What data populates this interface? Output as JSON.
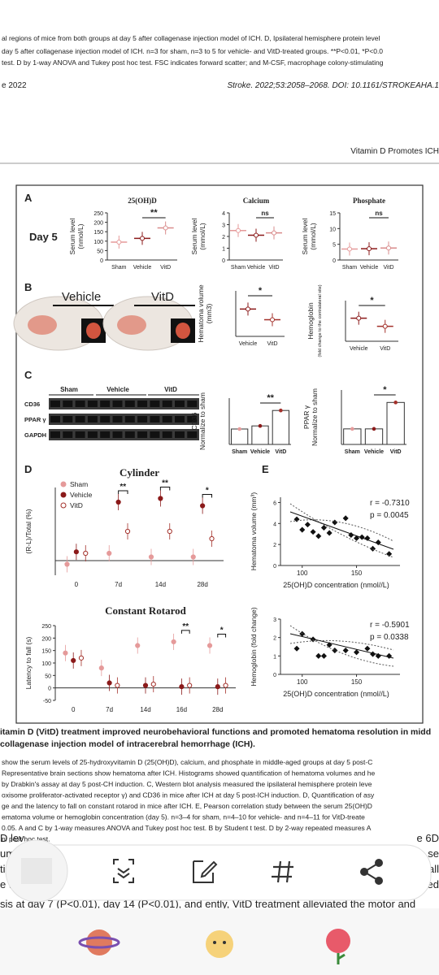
{
  "header": {
    "lines": [
      "al regions of mice from both groups at day 5 after collagenase injection model of ICH. D, Ipsilateral hemisphere protein level",
      "day 5 after collagenase injection model of ICH. n=3 for sham, n=3 to 5 for vehicle- and VitD-treated groups. **P<0.01, *P<0.0",
      "test. D by 1-way ANOVA and Tukey post hoc test. FSC indicates forward scatter; and M-CSF, macrophage colony-stimulating"
    ],
    "date": "e 2022",
    "citation": "Stroke. 2022;53:2058–2068. DOI: 10.1161/STROKEAHA.1",
    "running_title": "Vitamin D Promotes ICH"
  },
  "figure": {
    "panel_labels": [
      "A",
      "B",
      "C",
      "D",
      "E"
    ],
    "day": "Day 5",
    "brain_labels": [
      "Vehicle",
      "VitD"
    ],
    "blot": {
      "groups": [
        "Sham",
        "Vehicle",
        "VitD"
      ],
      "rows": [
        "CD36",
        "PPAR γ",
        "GAPDH"
      ]
    },
    "legend": [
      {
        "name": "Sham",
        "color": "#e59a9a"
      },
      {
        "name": "Vehicle",
        "color": "#8b1a1a"
      },
      {
        "name": "VitD",
        "color": "#a3302a"
      }
    ],
    "charts": [
      {
        "type": "dot",
        "title": "25(OH)D",
        "ylabel": [
          "Serum level",
          "(nmol/L)"
        ],
        "categories": [
          "Sham",
          "Vehicle",
          "VitD"
        ],
        "values": [
          95,
          115,
          170
        ],
        "colors": [
          "#e59a9a",
          "#8b1a1a",
          "#d98c8c"
        ],
        "ylim": [
          0,
          250
        ],
        "yticks": [
          0,
          50,
          100,
          150,
          200,
          250
        ],
        "sig": "**"
      },
      {
        "type": "dot",
        "title": "Calcium",
        "ylabel": [
          "Serum level",
          "(mmol/L)"
        ],
        "categories": [
          "Sham",
          "Vehicle",
          "VitD"
        ],
        "values": [
          2.5,
          2.1,
          2.3
        ],
        "colors": [
          "#e59a9a",
          "#8b1a1a",
          "#d98c8c"
        ],
        "ylim": [
          0,
          4
        ],
        "yticks": [
          0,
          1,
          2,
          3,
          4
        ],
        "sig": "ns"
      },
      {
        "type": "dot",
        "title": "Phosphate",
        "ylabel": [
          "Serum level",
          "(mmol/L)"
        ],
        "categories": [
          "Sham",
          "Vehicle",
          "VitD"
        ],
        "values": [
          3.5,
          3.6,
          3.8
        ],
        "colors": [
          "#e59a9a",
          "#8b1a1a",
          "#d98c8c"
        ],
        "ylim": [
          0,
          15
        ],
        "yticks": [
          0,
          5,
          10,
          15
        ],
        "sig": "ns"
      },
      {
        "type": "dot",
        "ylabel": [
          "Hematoma volume",
          "(mm3)"
        ],
        "categories": [
          "Vehicle",
          "VitD"
        ],
        "values": [
          3.6,
          2.2
        ],
        "colors": [
          "#8b1a1a",
          "#a3302a"
        ],
        "ylim": [
          0,
          6
        ],
        "sig": "*"
      },
      {
        "type": "dot",
        "ylabel": [
          "Hemoglobin",
          "(fold change to the contralateral site)"
        ],
        "categories": [
          "Vehicle",
          "VitD"
        ],
        "values": [
          1.7,
          1.1
        ],
        "colors": [
          "#8b1a1a",
          "#a3302a"
        ],
        "ylim": [
          0,
          3
        ],
        "sig": "*"
      },
      {
        "type": "bar",
        "ylabel": [
          "CD36",
          "Normalize to sham"
        ],
        "categories": [
          "Sham",
          "Vehicle",
          "VitD"
        ],
        "values": [
          1,
          1.2,
          2.2
        ],
        "colors": [
          "#e59a9a",
          "#8b1a1a",
          "#a3302a"
        ],
        "ylim": [
          0,
          3
        ],
        "sig": "**"
      },
      {
        "type": "bar",
        "ylabel": [
          "PPAR γ",
          "Normalize to sham"
        ],
        "categories": [
          "Sham",
          "Vehicle",
          "VitD"
        ],
        "values": [
          1,
          1,
          2.7
        ],
        "colors": [
          "#e59a9a",
          "#8b1a1a",
          "#a3302a"
        ],
        "ylim": [
          0,
          3.5
        ],
        "sig": "*"
      },
      {
        "type": "grouped-dot",
        "title": "Cylinder",
        "ylabel": [
          "(R-L)/Total (%)"
        ],
        "categories": [
          "0",
          "7d",
          "14d",
          "28d"
        ],
        "ylim": [
          -20,
          100
        ],
        "sig": [
          null,
          "**",
          "**",
          "*"
        ],
        "series": [
          {
            "name": "Sham",
            "color": "#e59a9a",
            "values": [
              -5,
              10,
              5,
              5
            ]
          },
          {
            "name": "Vehicle",
            "color": "#8b1a1a",
            "values": [
              12,
              80,
              85,
              75
            ]
          },
          {
            "name": "VitD",
            "color": "#a3302a",
            "values": [
              10,
              40,
              40,
              30
            ]
          }
        ]
      },
      {
        "type": "grouped-dot",
        "title": "Constant Rotarod",
        "ylabel": [
          "Latency to fall (s)"
        ],
        "categories": [
          "0",
          "7d",
          "14d",
          "16d",
          "28d"
        ],
        "ylim": [
          -50,
          250
        ],
        "yticks": [
          -50,
          0,
          50,
          100,
          150,
          200,
          250
        ],
        "sig": [
          null,
          null,
          null,
          "**",
          "*"
        ],
        "series": [
          {
            "name": "Sham",
            "color": "#e59a9a",
            "values": [
              140,
              80,
              170,
              185,
              170
            ]
          },
          {
            "name": "Vehicle",
            "color": "#8b1a1a",
            "values": [
              110,
              20,
              10,
              5,
              5
            ]
          },
          {
            "name": "VitD",
            "color": "#a3302a",
            "values": [
              120,
              10,
              15,
              10,
              10
            ]
          }
        ]
      },
      {
        "type": "scatter",
        "ylabel": [
          "Hematoma volume (mm³)"
        ],
        "xlabel": "25(OH)D concentration (nmol//L)",
        "stats": [
          "r = -0.7310",
          "p = 0.0045"
        ],
        "x": [
          95,
          100,
          105,
          110,
          115,
          120,
          125,
          130,
          140,
          145,
          150,
          155,
          160,
          165,
          170,
          180
        ],
        "values": [
          4.4,
          3.4,
          3.9,
          3.2,
          2.8,
          3.6,
          3.1,
          4.1,
          4.5,
          2.9,
          2.6,
          2.7,
          2.6,
          1.6,
          2.2,
          1.1
        ],
        "xlim": [
          80,
          190
        ],
        "xticks": [
          100,
          150
        ],
        "ylim": [
          0,
          6.5
        ],
        "yticks": [
          0,
          2,
          4,
          6
        ],
        "color": "#111"
      },
      {
        "type": "scatter",
        "ylabel": [
          "Hemoglobin (fold change)"
        ],
        "xlabel": "25(OH)D concentration (nmol//L)",
        "stats": [
          "r = -0.5901",
          "p = 0.0338"
        ],
        "x": [
          95,
          100,
          110,
          115,
          120,
          125,
          130,
          140,
          150,
          160,
          165,
          170,
          180
        ],
        "values": [
          1.4,
          2.2,
          1.9,
          1.0,
          1.0,
          1.6,
          1.3,
          1.3,
          1.2,
          1.4,
          1.1,
          1.0,
          1.0
        ],
        "xlim": [
          80,
          190
        ],
        "xticks": [
          100,
          150
        ],
        "ylim": [
          0,
          3
        ],
        "yticks": [
          0,
          1,
          2,
          3
        ],
        "color": "#111"
      }
    ]
  },
  "caption": {
    "bold": [
      "itamin D (VitD) treatment improved neurobehavioral functions and promoted hematoma resolution in midd",
      "collagenase injection model of intracerebral hemorrhage (ICH)."
    ],
    "lines": [
      " show the serum levels of 25-hydroxyvitamin D (25(OH)D), calcium, and phosphate in middle-aged groups at day 5 post-C",
      "Representative brain sections show hematoma after ICH. Histograms showed quantification of hematoma volumes and he",
      "by Drabkin's assay at day 5 post-CH induction. C, Western blot analysis measured the ipsilateral hemisphere protein leve",
      "oxisome proliferator-activated receptor γ) and CD36 in mice after ICH at day 5 post-ICH induction. D, Quantification of asy",
      "ge and the latency to fall on constant rotarod in mice after ICH. E, Pearson correlation study between the serum 25(OH)D",
      "ematoma volume or hemoglobin concentration (day 5). n=3–4 for sham, n=4–10 for vehicle- and n=4–11 for VitD-treate",
      "0.05. A and C by 1-way measures ANOVA and Tukey post hoc test. B by Student t test. D by 2-way repeated measures A",
      "ni post hoc test."
    ]
  },
  "body": {
    "left": [
      "D lev",
      "ume",
      "tio",
      "e t"
    ],
    "right": [
      "e 6D",
      "se",
      "all",
      "ded"
    ],
    "last": "sis at day 7 (P<0.01), day 14 (P<0.01), and       ently, VitD treatment alleviated the motor and"
  }
}
